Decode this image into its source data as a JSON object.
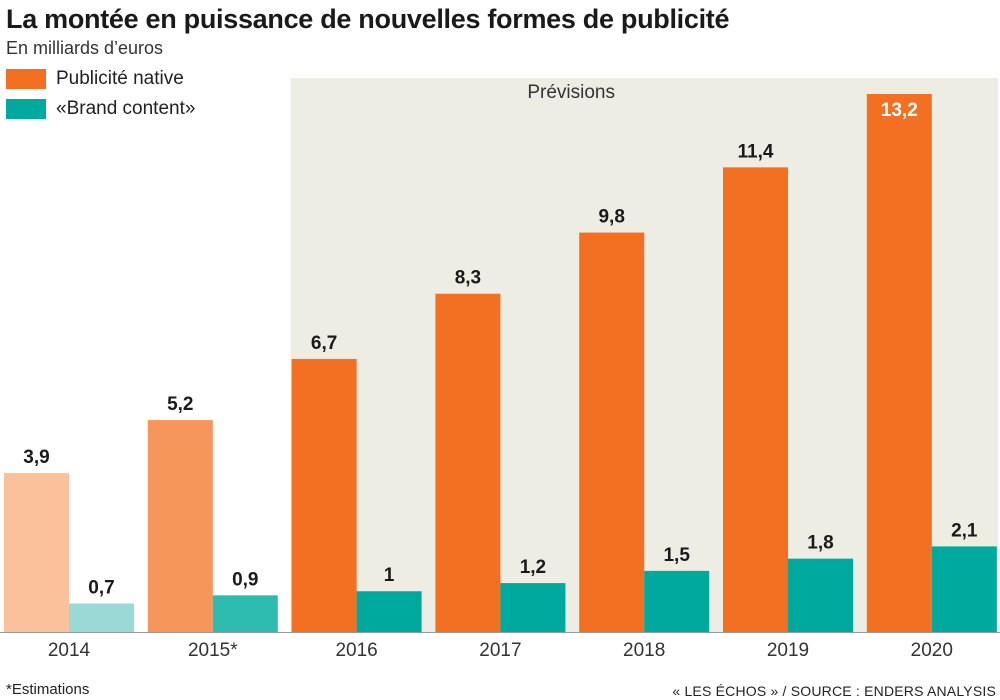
{
  "title": "La montée en puissance de nouvelles formes de publicité",
  "subtitle": "En milliards d’euros",
  "legend": [
    {
      "label": "Publicité native",
      "color": "#f36f21"
    },
    {
      "label": "«Brand content»",
      "color": "#00a99d"
    }
  ],
  "forecast_label": "Prévisions",
  "footnote": "*Estimations",
  "source": "« LES ÉCHOS » / SOURCE : ENDERS ANALYSIS",
  "chart_data": {
    "type": "bar",
    "categories": [
      "2014",
      "2015*",
      "2016",
      "2017",
      "2018",
      "2019",
      "2020"
    ],
    "series": [
      {
        "name": "Publicité native",
        "values": [
          3.9,
          5.2,
          6.7,
          8.3,
          9.8,
          11.4,
          13.2
        ],
        "labels": [
          "3,9",
          "5,2",
          "6,7",
          "8,3",
          "9,8",
          "11,4",
          "13,2"
        ]
      },
      {
        "name": "«Brand content»",
        "values": [
          0.7,
          0.9,
          1,
          1.2,
          1.5,
          1.8,
          2.1
        ],
        "labels": [
          "0,7",
          "0,9",
          "1",
          "1,2",
          "1,5",
          "1,8",
          "2,1"
        ]
      }
    ],
    "colors": {
      "native": [
        "#fbc19a",
        "#f7965a",
        "#f36f21",
        "#f36f21",
        "#f36f21",
        "#f36f21",
        "#f36f21"
      ],
      "brand": [
        "#99dad6",
        "#2ebcb1",
        "#00a99d",
        "#00a99d",
        "#00a99d",
        "#00a99d",
        "#00a99d"
      ]
    },
    "forecast_start_category": "2016",
    "forecast_background": "#eeede3",
    "ylim": [
      0,
      13.2
    ],
    "grid": false,
    "legend_position": "top-left"
  }
}
